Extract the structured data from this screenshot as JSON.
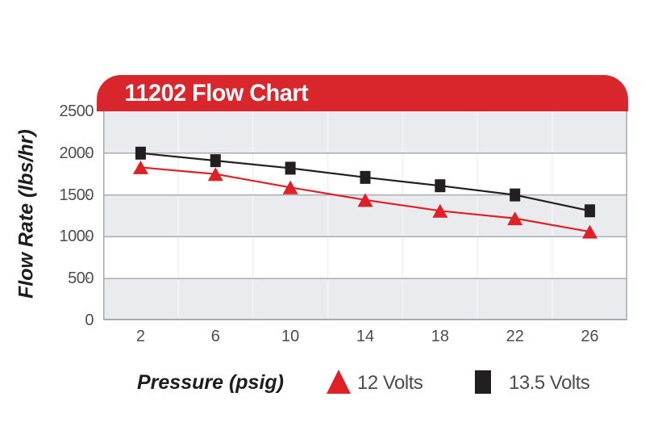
{
  "banner": {
    "title": "11202 Flow Chart",
    "background_color": "#d8262c",
    "text_color": "#ffffff"
  },
  "chart_data": {
    "type": "line",
    "title": "11202 Flow Chart",
    "xlabel": "Pressure (psig)",
    "ylabel": "Flow Rate (lbs/hr)",
    "x": [
      2,
      6,
      10,
      14,
      18,
      22,
      26
    ],
    "ylim": [
      0,
      2500
    ],
    "yticks": [
      2500,
      2000,
      1500,
      1000,
      500,
      0
    ],
    "grid": "horizontal gridlines every 500; alternating gray/white horizontal bands; faint vertical category separators",
    "legend_position": "bottom",
    "series": [
      {
        "name": "12 Volts",
        "marker": "triangle",
        "color": "#e02027",
        "values": [
          1830,
          1750,
          1590,
          1440,
          1310,
          1220,
          1060
        ]
      },
      {
        "name": "13.5 Volts",
        "marker": "square",
        "color": "#231f20",
        "values": [
          2000,
          1910,
          1820,
          1710,
          1610,
          1500,
          1310
        ]
      }
    ]
  },
  "colors": {
    "band_gray": "#eaebee",
    "band_white": "#ffffff",
    "h_gridline": "#a9abae",
    "v_gridline": "#f2f3f4",
    "plot_border": "#a9abae",
    "tick_text": "#4c4d4f",
    "tick_mark": "#8c8e90"
  }
}
